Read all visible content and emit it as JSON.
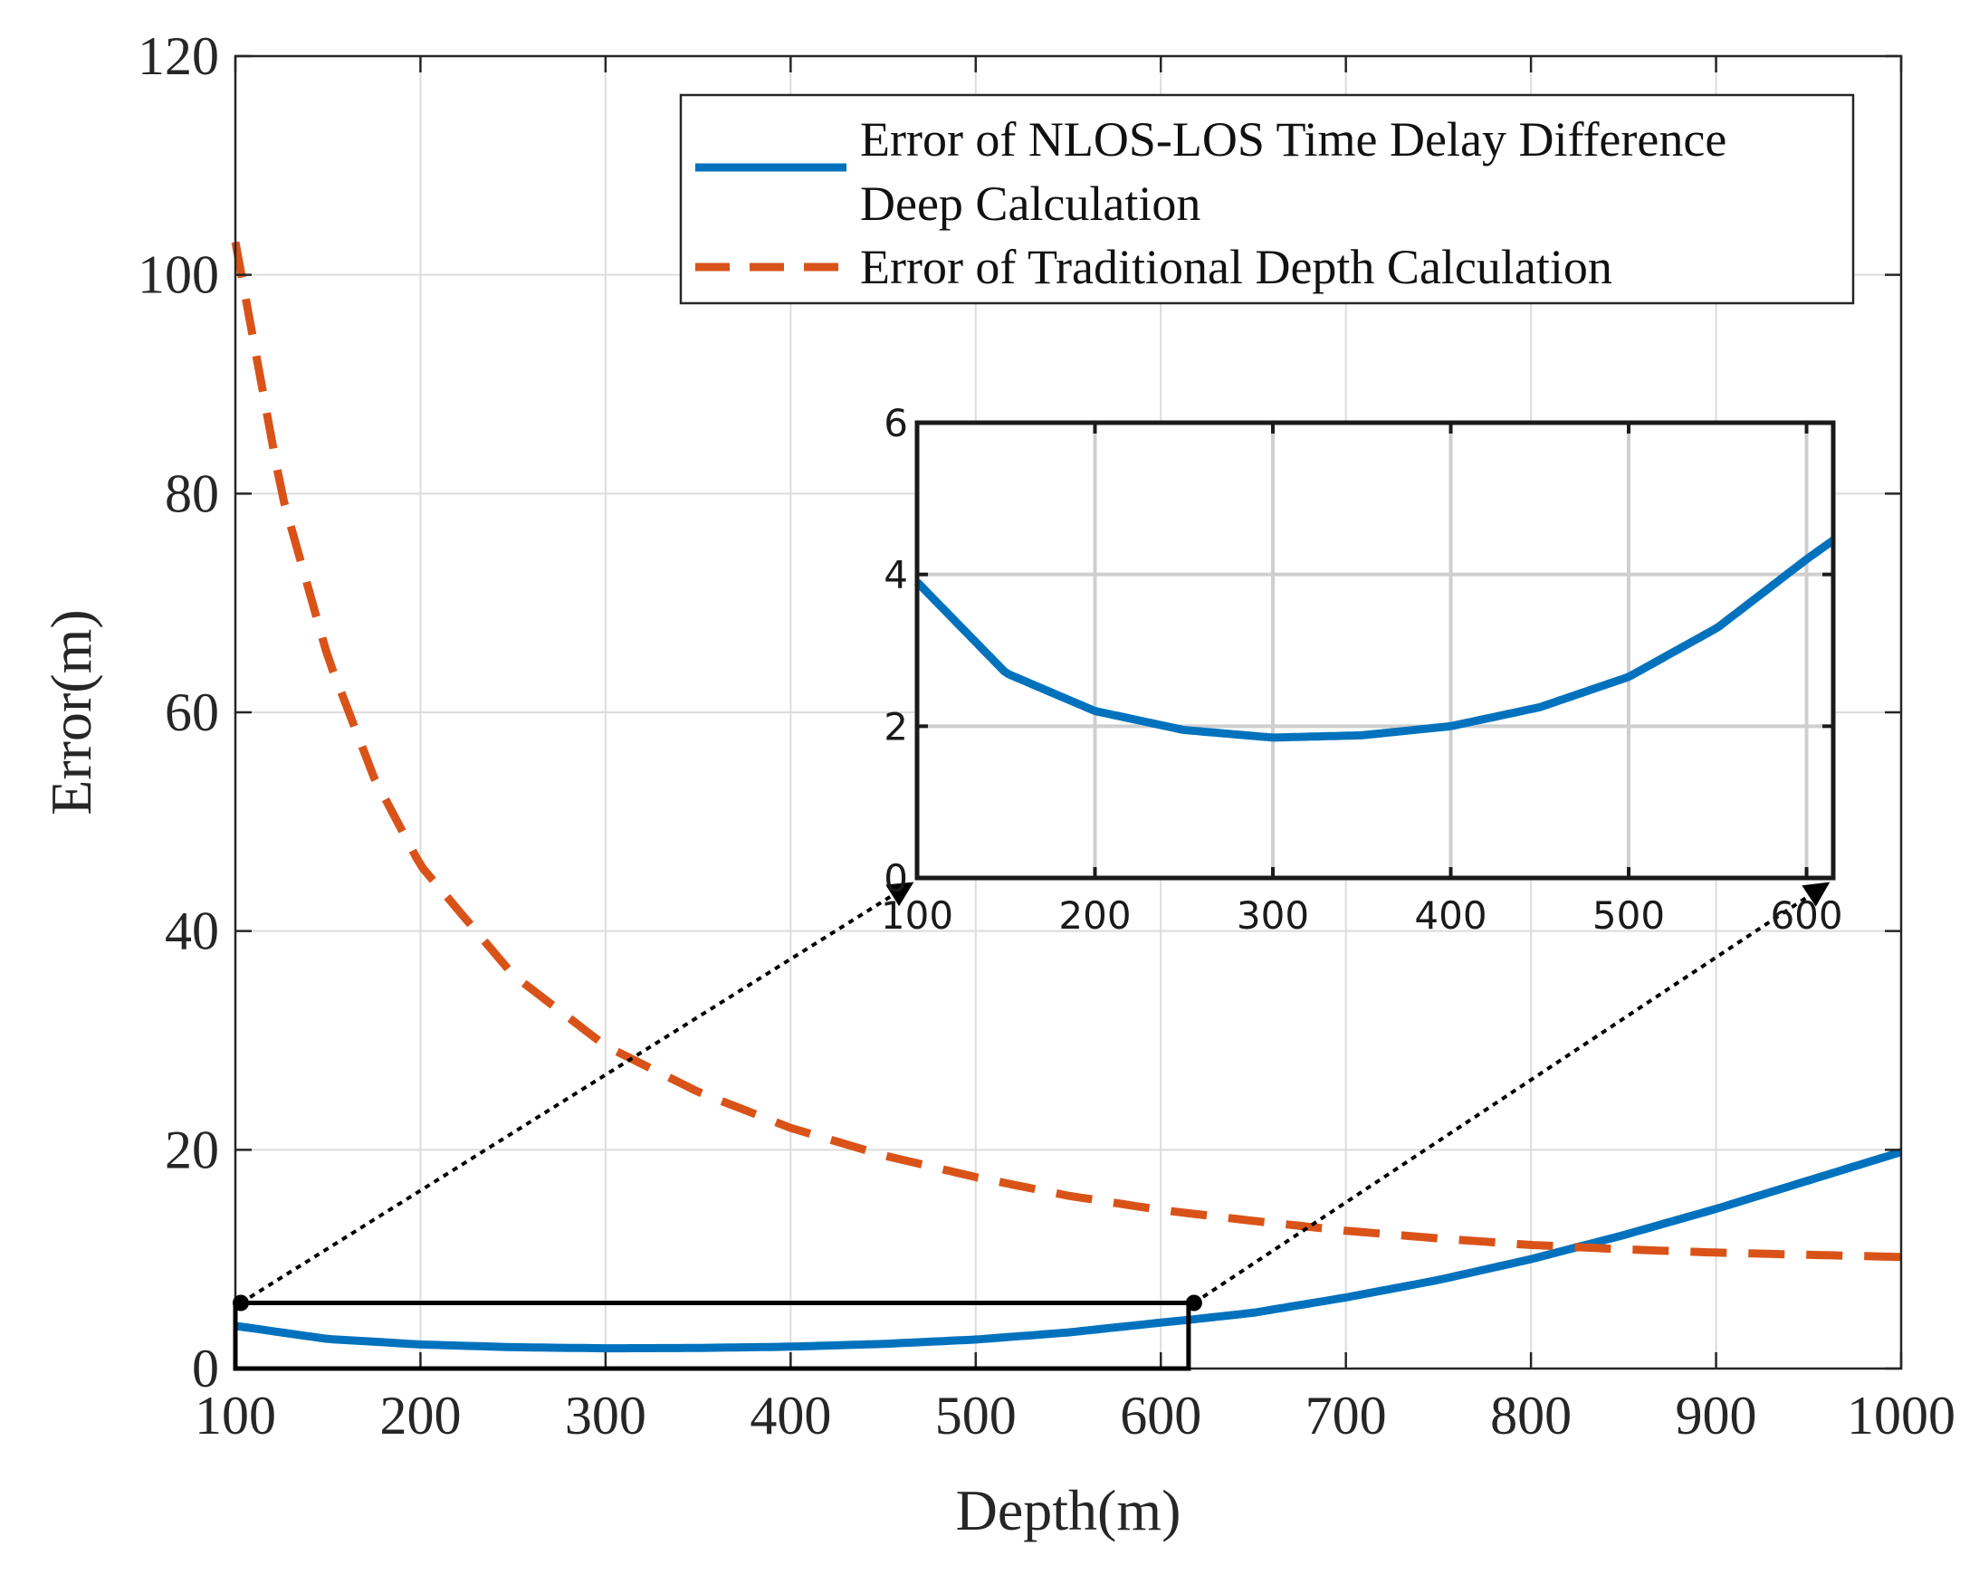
{
  "chart_data": {
    "type": "line",
    "xlabel": "Depth(m)",
    "ylabel": "Error(m)",
    "xlim": [
      100,
      1000
    ],
    "ylim": [
      0,
      120
    ],
    "xticks": [
      "100",
      "200",
      "300",
      "400",
      "500",
      "600",
      "700",
      "800",
      "900",
      "1000"
    ],
    "yticks": [
      "0",
      "20",
      "40",
      "60",
      "80",
      "100",
      "120"
    ],
    "grid": true,
    "legend_position": "top-right",
    "series": [
      {
        "name": "Error of NLOS-LOS Time Delay Difference Deep Calculation",
        "legend_lines": [
          "Error of NLOS-LOS Time Delay Difference",
          "Deep Calculation"
        ],
        "style": "solid",
        "color": "#0072BD",
        "x": [
          100,
          150,
          200,
          250,
          300,
          350,
          400,
          450,
          500,
          550,
          600,
          615,
          650,
          700,
          750,
          800,
          850,
          900,
          950,
          1000
        ],
        "y": [
          3.9,
          2.7,
          2.2,
          1.95,
          1.85,
          1.88,
          2.0,
          2.25,
          2.65,
          3.3,
          4.2,
          4.45,
          5.1,
          6.5,
          8.1,
          10.0,
          12.2,
          14.6,
          17.2,
          19.8
        ]
      },
      {
        "name": "Error of Traditional Depth Calculation",
        "style": "dashed",
        "color": "#D95319",
        "x": [
          100,
          125,
          150,
          175,
          200,
          250,
          300,
          350,
          400,
          450,
          500,
          550,
          600,
          650,
          700,
          750,
          800,
          850,
          900,
          950,
          1000
        ],
        "y": [
          103,
          80,
          65,
          54,
          46,
          36,
          29.5,
          25.3,
          22.0,
          19.5,
          17.5,
          15.8,
          14.5,
          13.5,
          12.6,
          11.9,
          11.3,
          10.9,
          10.6,
          10.4,
          10.2
        ]
      }
    ],
    "zoom_region": {
      "xlim": [
        100,
        615
      ],
      "ylim": [
        0,
        6
      ]
    },
    "inset": {
      "xlim": [
        100,
        615
      ],
      "ylim": [
        0,
        6
      ],
      "xticks": [
        "100",
        "200",
        "300",
        "400",
        "500",
        "600"
      ],
      "yticks": [
        "0",
        "2",
        "4",
        "6"
      ],
      "grid": true
    }
  }
}
